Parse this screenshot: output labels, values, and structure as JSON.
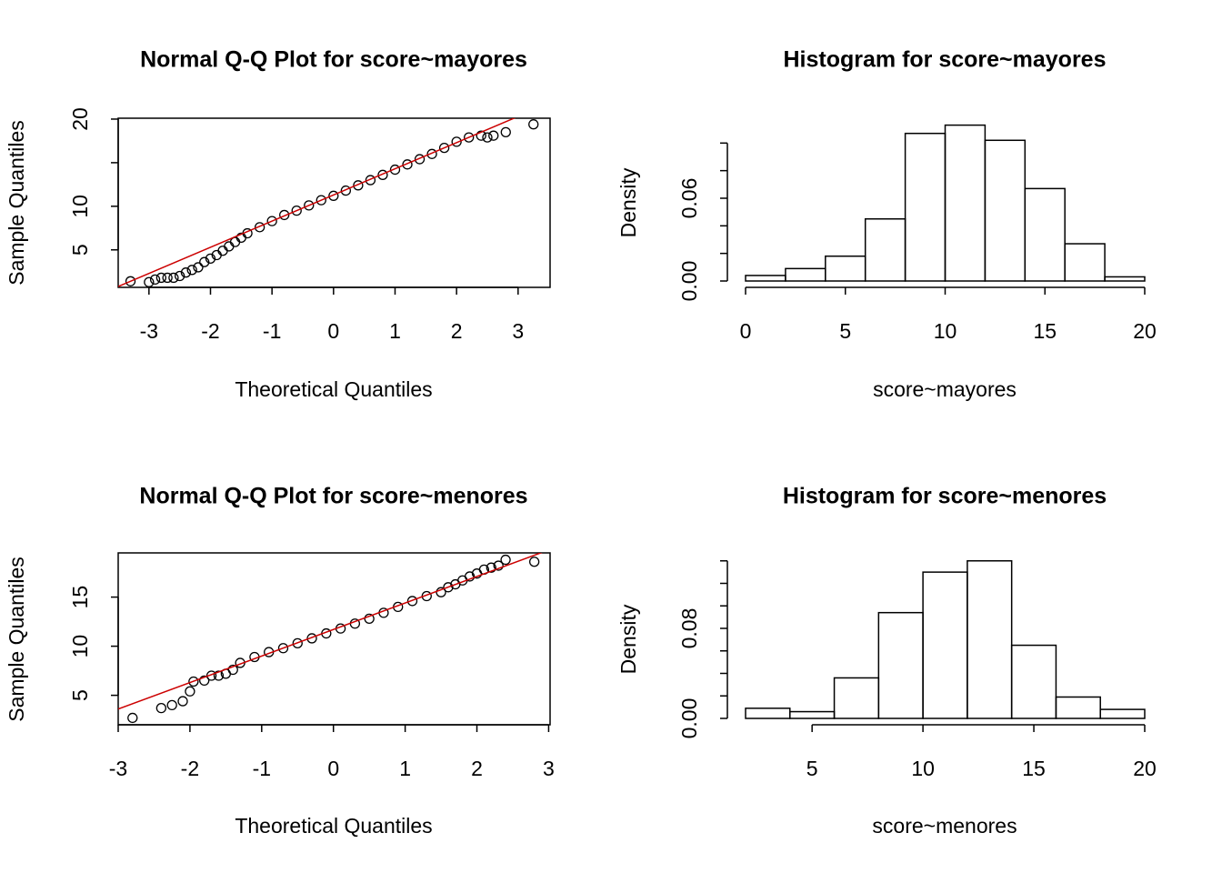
{
  "chart_data": [
    {
      "type": "qq",
      "title": "Normal Q-Q Plot for  score~mayores",
      "xlabel": "Theoretical Quantiles",
      "ylabel": "Sample Quantiles",
      "x": [
        -3.3,
        -3.0,
        -2.9,
        -2.8,
        -2.7,
        -2.6,
        -2.5,
        -2.4,
        -2.3,
        -2.2,
        -2.1,
        -2.0,
        -1.9,
        -1.8,
        -1.7,
        -1.6,
        -1.5,
        -1.4,
        -1.2,
        -1.0,
        -0.8,
        -0.6,
        -0.4,
        -0.2,
        0,
        0.2,
        0.4,
        0.6,
        0.8,
        1.0,
        1.2,
        1.4,
        1.6,
        1.8,
        2.0,
        2.2,
        2.4,
        2.5,
        2.6,
        2.8,
        3.25
      ],
      "values": [
        1.4,
        1.3,
        1.6,
        1.8,
        1.8,
        1.8,
        2.0,
        2.4,
        2.7,
        3.0,
        3.6,
        4.0,
        4.4,
        4.9,
        5.4,
        5.9,
        6.4,
        6.9,
        7.6,
        8.3,
        9.0,
        9.5,
        10.1,
        10.7,
        11.2,
        11.8,
        12.4,
        13.0,
        13.6,
        14.2,
        14.8,
        15.4,
        16.0,
        16.7,
        17.4,
        17.9,
        18.1,
        17.9,
        18.1,
        18.5,
        19.4
      ],
      "reference_line": {
        "intercept": 11.3,
        "slope": 3.0,
        "color": "#cc0000"
      },
      "xlim": [
        -3.5,
        3.52
      ],
      "ylim": [
        0.7,
        20.1
      ],
      "xticks": [
        -3,
        -2,
        -1,
        0,
        1,
        2,
        3
      ],
      "yticks": [
        5,
        10,
        {
          "value": 15,
          "label": null
        },
        20
      ]
    },
    {
      "type": "histogram",
      "title": "Histogram for  score~mayores",
      "xlabel": "score~mayores",
      "ylabel": "Density",
      "bins": [
        0,
        2,
        4,
        6,
        8,
        10,
        12,
        14,
        16,
        18,
        20
      ],
      "values": [
        0.004,
        0.009,
        0.018,
        0.045,
        0.107,
        0.113,
        0.102,
        0.067,
        0.027,
        0.003
      ],
      "xlim": [
        0,
        20
      ],
      "ylim": [
        0,
        0.113
      ],
      "xticks": [
        0,
        5,
        10,
        15,
        20
      ],
      "yticks": [
        {
          "value": 0,
          "label": "0.00"
        },
        {
          "value": 0.02,
          "label": null
        },
        {
          "value": 0.04,
          "label": null
        },
        {
          "value": 0.06,
          "label": "0.06"
        },
        {
          "value": 0.08,
          "label": null
        },
        {
          "value": 0.1,
          "label": null
        }
      ]
    },
    {
      "type": "qq",
      "title": "Normal Q-Q Plot for  score~menores",
      "xlabel": "Theoretical Quantiles",
      "ylabel": "Sample Quantiles",
      "x": [
        -2.8,
        -2.4,
        -2.25,
        -2.1,
        -2.0,
        -1.95,
        -1.8,
        -1.7,
        -1.6,
        -1.5,
        -1.4,
        -1.3,
        -1.1,
        -0.9,
        -0.7,
        -0.5,
        -0.3,
        -0.1,
        0.1,
        0.3,
        0.5,
        0.7,
        0.9,
        1.1,
        1.3,
        1.5,
        1.6,
        1.7,
        1.8,
        1.9,
        2.0,
        2.1,
        2.2,
        2.3,
        2.4,
        2.8
      ],
      "values": [
        2.7,
        3.7,
        4.0,
        4.4,
        5.4,
        6.4,
        6.5,
        7.0,
        7.0,
        7.2,
        7.6,
        8.3,
        8.9,
        9.4,
        9.8,
        10.3,
        10.8,
        11.3,
        11.8,
        12.3,
        12.8,
        13.4,
        14.0,
        14.6,
        15.1,
        15.5,
        16.0,
        16.3,
        16.7,
        17.1,
        17.4,
        17.8,
        18.0,
        18.2,
        18.8,
        18.6
      ],
      "reference_line": {
        "intercept": 11.7,
        "slope": 2.7,
        "color": "#cc0000"
      },
      "xlim": [
        -3,
        3.02
      ],
      "ylim": [
        2.0,
        19.5
      ],
      "xticks": [
        -3,
        -2,
        -1,
        0,
        1,
        2,
        3
      ],
      "yticks": [
        5,
        10,
        15
      ]
    },
    {
      "type": "histogram",
      "title": "Histogram for  score~menores",
      "xlabel": "score~menores",
      "ylabel": "Density",
      "bins": [
        2,
        4,
        6,
        8,
        10,
        12,
        14,
        16,
        18,
        20
      ],
      "values": [
        0.009,
        0.006,
        0.036,
        0.094,
        0.13,
        0.14,
        0.065,
        0.019,
        0.008
      ],
      "xlim": [
        2,
        20
      ],
      "ylim": [
        0,
        0.14
      ],
      "xticks": [
        5,
        10,
        15,
        20
      ],
      "yticks": [
        {
          "value": 0,
          "label": "0.00"
        },
        {
          "value": 0.02,
          "label": null
        },
        {
          "value": 0.04,
          "label": null
        },
        {
          "value": 0.06,
          "label": null
        },
        {
          "value": 0.08,
          "label": "0.08"
        },
        {
          "value": 0.1,
          "label": null
        },
        {
          "value": 0.12,
          "label": null
        },
        {
          "value": 0.14,
          "label": null
        }
      ]
    }
  ]
}
